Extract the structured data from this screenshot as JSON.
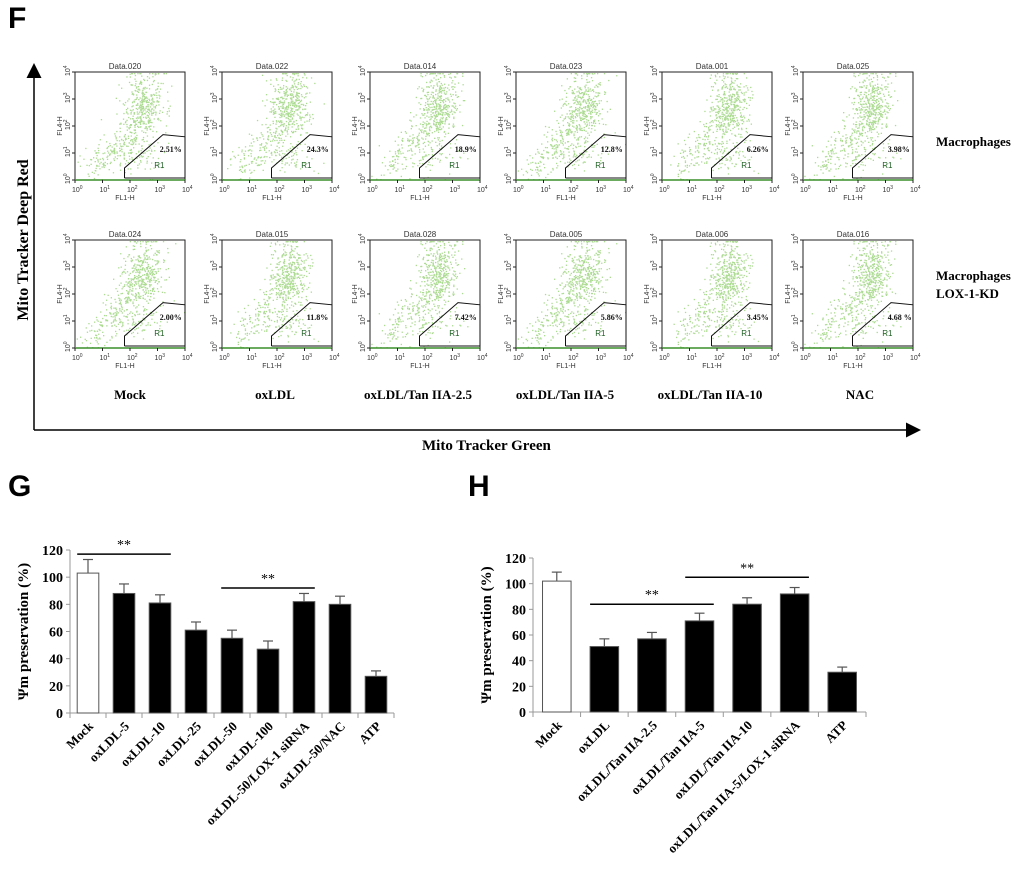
{
  "panels": {
    "F": {
      "letter": "F",
      "y_axis_label": "Mito Tracker Deep Red",
      "x_axis_label": "Mito Tracker Green",
      "row_labels": [
        "Macrophages",
        "Macrophages\nLOX-1-KD"
      ],
      "row_label_lines": [
        [
          "Macrophages"
        ],
        [
          "Macrophages",
          "LOX-1-KD"
        ]
      ],
      "column_labels": [
        "Mock",
        "oxLDL",
        "oxLDL/Tan IIA-2.5",
        "oxLDL/Tan IIA-5",
        "oxLDL/Tan IIA-10",
        "NAC"
      ],
      "plot_x_label": "FL1-H",
      "plot_y_label": "FL4-H",
      "tick_labels": [
        "10",
        "10",
        "10",
        "10",
        "10"
      ],
      "tick_exponents": [
        "0",
        "1",
        "2",
        "3",
        "4"
      ],
      "gate_label": "R1",
      "point_color": "#6abf3a",
      "rows": [
        [
          {
            "title": "Data.020",
            "gate_percent": "2.51%"
          },
          {
            "title": "Data.022",
            "gate_percent": "24.3%"
          },
          {
            "title": "Data.014",
            "gate_percent": "18.9%"
          },
          {
            "title": "Data.023",
            "gate_percent": "12.8%"
          },
          {
            "title": "Data.001",
            "gate_percent": "6.26%"
          },
          {
            "title": "Data.025",
            "gate_percent": "3.98%"
          }
        ],
        [
          {
            "title": "Data.024",
            "gate_percent": "2.00%"
          },
          {
            "title": "Data.015",
            "gate_percent": "11.8%"
          },
          {
            "title": "Data.028",
            "gate_percent": "7.42%"
          },
          {
            "title": "Data.005",
            "gate_percent": "5.86%"
          },
          {
            "title": "Data.006",
            "gate_percent": "3.45%"
          },
          {
            "title": "Data.016",
            "gate_percent": "4.68 %"
          }
        ]
      ]
    }
  },
  "chart_data": [
    {
      "panel": "G",
      "type": "bar",
      "title": "",
      "xlabel": "",
      "ylabel": "Ψm preservation (%)",
      "ylim": [
        0,
        120
      ],
      "yticks": [
        0,
        20,
        40,
        60,
        80,
        100,
        120
      ],
      "grid": false,
      "categories": [
        "Mock",
        "oxLDL-5",
        "oxLDL-10",
        "oxLDL-25",
        "oxLDL-50",
        "oxLDL-100",
        "oxLDL-50/LOX-1 siRNA",
        "oxLDL-50/NAC",
        "ATP"
      ],
      "values": [
        103,
        88,
        81,
        61,
        55,
        47,
        82,
        80,
        27
      ],
      "errors": [
        10,
        7,
        6,
        6,
        6,
        6,
        6,
        6,
        4
      ],
      "bar_fill": [
        "#ffffff",
        "#000000",
        "#000000",
        "#000000",
        "#000000",
        "#000000",
        "#000000",
        "#000000",
        "#000000"
      ],
      "annotations": [
        {
          "text": "**",
          "from": "Mock",
          "to": "oxLDL-10",
          "y": 117
        },
        {
          "text": "**",
          "from": "oxLDL-50",
          "to": "oxLDL-50/LOX-1 siRNA",
          "y": 92
        }
      ]
    },
    {
      "panel": "H",
      "type": "bar",
      "title": "",
      "xlabel": "",
      "ylabel": "Ψm preservation (%)",
      "ylim": [
        0,
        120
      ],
      "yticks": [
        0,
        20,
        40,
        60,
        80,
        100,
        120
      ],
      "grid": false,
      "categories": [
        "Mock",
        "oxLDL",
        "oxLDL/Tan IIA-2.5",
        "oxLDL/Tan IIA-5",
        "oxLDL/Tan IIA-10",
        "oxLDL/Tan IIA-5/LOX-1 siRNA",
        "ATP"
      ],
      "values": [
        102,
        51,
        57,
        71,
        84,
        92,
        31
      ],
      "errors": [
        7,
        6,
        5,
        6,
        5,
        5,
        4
      ],
      "bar_fill": [
        "#ffffff",
        "#000000",
        "#000000",
        "#000000",
        "#000000",
        "#000000",
        "#000000"
      ],
      "annotations": [
        {
          "text": "**",
          "from": "oxLDL",
          "to": "oxLDL/Tan IIA-5",
          "y": 84
        },
        {
          "text": "**",
          "from": "oxLDL/Tan IIA-5",
          "to": "oxLDL/Tan IIA-5/LOX-1 siRNA",
          "y": 105
        }
      ]
    }
  ],
  "labels": {
    "G": "G",
    "H": "H"
  }
}
